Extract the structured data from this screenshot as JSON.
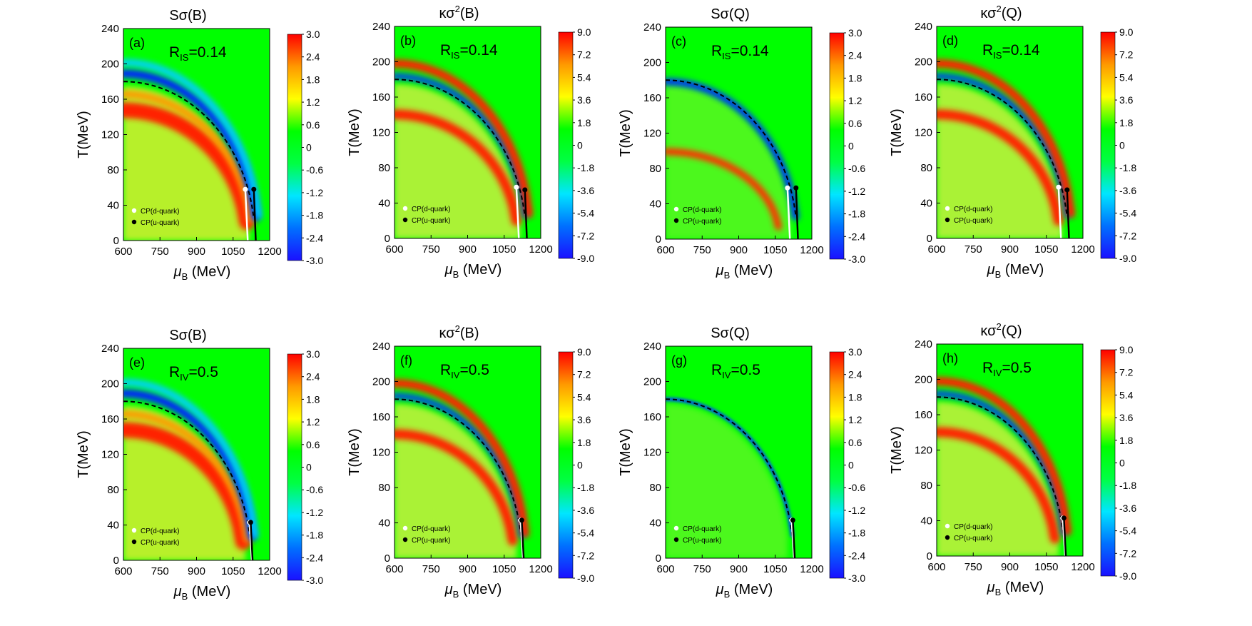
{
  "figure": {
    "colormap_stops": [
      "#1a10ff",
      "#0070ff",
      "#00e6ff",
      "#00ff44",
      "#00ff00",
      "#ffff00",
      "#ff9900",
      "#ff0000"
    ],
    "plot_bg_color": "#00ff00",
    "cp_d_color": "#ffffff",
    "cp_u_color": "#000000"
  },
  "chart_data": [
    {
      "id": "a",
      "type": "heatmap",
      "panel_label": "(a)",
      "title": "Sσ(B)",
      "annotation": "R_IS=0.14",
      "annotation_main": "R",
      "annotation_sub": "IS",
      "annotation_value": "=0.14",
      "xlabel": "μ_B (MeV)",
      "ylabel": "T(MeV)",
      "xlim": [
        600,
        1200
      ],
      "ylim": [
        0,
        240
      ],
      "xticks": [
        "600",
        "750",
        "900",
        "1050",
        "1200"
      ],
      "yticks": [
        "0",
        "40",
        "80",
        "120",
        "160",
        "200",
        "240"
      ],
      "colorbar_range": [
        -3.0,
        3.0
      ],
      "colorbar_ticks": [
        "3.0",
        "2.4",
        "1.8",
        "1.2",
        "0.6",
        "0",
        "-0.6",
        "-1.2",
        "-1.8",
        "-2.4",
        "-3.0"
      ],
      "legend": [
        "CP(d-quark)",
        "CP(u-quark)"
      ],
      "crossover_T0": 180,
      "cp_d": [
        1100,
        58
      ],
      "cp_u": [
        1135,
        58
      ]
    },
    {
      "id": "b",
      "type": "heatmap",
      "panel_label": "(b)",
      "title": "κσ2(B)",
      "title_main": "κσ",
      "title_sup": "2",
      "title_tail": "(B)",
      "annotation": "R_IS=0.14",
      "annotation_main": "R",
      "annotation_sub": "IS",
      "annotation_value": "=0.14",
      "xlabel": "μ_B (MeV)",
      "ylabel": "T(MeV)",
      "xlim": [
        600,
        1200
      ],
      "ylim": [
        0,
        240
      ],
      "xticks": [
        "600",
        "750",
        "900",
        "1050",
        "1200"
      ],
      "yticks": [
        "0",
        "40",
        "80",
        "120",
        "160",
        "200",
        "240"
      ],
      "colorbar_range": [
        -9.0,
        9.0
      ],
      "colorbar_ticks": [
        "9.0",
        "7.2",
        "5.4",
        "3.6",
        "1.8",
        "0",
        "-1.8",
        "-3.6",
        "-5.4",
        "-7.2",
        "-9.0"
      ],
      "legend": [
        "CP(d-quark)",
        "CP(u-quark)"
      ],
      "crossover_T0": 180,
      "cp_d": [
        1100,
        58
      ],
      "cp_u": [
        1135,
        55
      ]
    },
    {
      "id": "c",
      "type": "heatmap",
      "panel_label": "(c)",
      "title": "Sσ(Q)",
      "annotation": "R_IS=0.14",
      "annotation_main": "R",
      "annotation_sub": "IS",
      "annotation_value": "=0.14",
      "xlabel": "μ_B (MeV)",
      "ylabel": "T(MeV)",
      "xlim": [
        600,
        1200
      ],
      "ylim": [
        0,
        240
      ],
      "xticks": [
        "600",
        "750",
        "900",
        "1050",
        "1200"
      ],
      "yticks": [
        "0",
        "40",
        "80",
        "120",
        "160",
        "200",
        "240"
      ],
      "colorbar_range": [
        -3.0,
        3.0
      ],
      "colorbar_ticks": [
        "3.0",
        "2.4",
        "1.8",
        "1.2",
        "0.6",
        "0",
        "-0.6",
        "-1.2",
        "-1.8",
        "-2.4",
        "-3.0"
      ],
      "legend": [
        "CP(d-quark)",
        "CP(u-quark)"
      ],
      "crossover_T0": 180,
      "cp_d": [
        1100,
        58
      ],
      "cp_u": [
        1135,
        58
      ]
    },
    {
      "id": "d",
      "type": "heatmap",
      "panel_label": "(d)",
      "title": "κσ2(Q)",
      "title_main": "κσ",
      "title_sup": "2",
      "title_tail": "(Q)",
      "annotation": "R_IS=0.14",
      "annotation_main": "R",
      "annotation_sub": "IS",
      "annotation_value": "=0.14",
      "xlabel": "μ_B (MeV)",
      "ylabel": "T(MeV)",
      "xlim": [
        600,
        1200
      ],
      "ylim": [
        0,
        240
      ],
      "xticks": [
        "600",
        "750",
        "900",
        "1050",
        "1200"
      ],
      "yticks": [
        "0",
        "40",
        "80",
        "120",
        "160",
        "200",
        "240"
      ],
      "colorbar_range": [
        -9.0,
        9.0
      ],
      "colorbar_ticks": [
        "9.0",
        "7.2",
        "5.4",
        "3.6",
        "1.8",
        "0",
        "-1.8",
        "-3.6",
        "-5.4",
        "-7.2",
        "-9.0"
      ],
      "legend": [
        "CP(d-quark)",
        "CP(u-quark)"
      ],
      "crossover_T0": 180,
      "cp_d": [
        1100,
        58
      ],
      "cp_u": [
        1135,
        55
      ]
    },
    {
      "id": "e",
      "type": "heatmap",
      "panel_label": "(e)",
      "title": "Sσ(B)",
      "annotation": "R_IV=0.5",
      "annotation_main": "R",
      "annotation_sub": "IV",
      "annotation_value": "=0.5",
      "xlabel": "μ_B (MeV)",
      "ylabel": "T(MeV)",
      "xlim": [
        600,
        1200
      ],
      "ylim": [
        0,
        240
      ],
      "xticks": [
        "600",
        "750",
        "900",
        "1050",
        "1200"
      ],
      "yticks": [
        "0",
        "40",
        "80",
        "120",
        "160",
        "200",
        "240"
      ],
      "colorbar_range": [
        -3.0,
        3.0
      ],
      "colorbar_ticks": [
        "3.0",
        "2.4",
        "1.8",
        "1.2",
        "0.6",
        "0",
        "-0.6",
        "-1.2",
        "-1.8",
        "-2.4",
        "-3.0"
      ],
      "legend": [
        "CP(d-quark)",
        "CP(u-quark)"
      ],
      "crossover_T0": 180,
      "cp_d": [
        1117,
        43
      ],
      "cp_u": [
        1122,
        43
      ]
    },
    {
      "id": "f",
      "type": "heatmap",
      "panel_label": "(f)",
      "title": "κσ2(B)",
      "title_main": "κσ",
      "title_sup": "2",
      "title_tail": "(B)",
      "annotation": "R_IV=0.5",
      "annotation_main": "R",
      "annotation_sub": "IV",
      "annotation_value": "=0.5",
      "xlabel": "μ_B (MeV)",
      "ylabel": "T(MeV)",
      "xlim": [
        600,
        1200
      ],
      "ylim": [
        0,
        240
      ],
      "xticks": [
        "600",
        "750",
        "900",
        "1050",
        "1200"
      ],
      "yticks": [
        "0",
        "40",
        "80",
        "120",
        "160",
        "200",
        "240"
      ],
      "colorbar_range": [
        -9.0,
        9.0
      ],
      "colorbar_ticks": [
        "9.0",
        "7.2",
        "5.4",
        "3.6",
        "1.8",
        "0",
        "-1.8",
        "-3.6",
        "-5.4",
        "-7.2",
        "-9.0"
      ],
      "legend": [
        "CP(d-quark)",
        "CP(u-quark)"
      ],
      "crossover_T0": 180,
      "cp_d": [
        1117,
        43
      ],
      "cp_u": [
        1122,
        43
      ]
    },
    {
      "id": "g",
      "type": "heatmap",
      "panel_label": "(g)",
      "title": "Sσ(Q)",
      "annotation": "R_IV=0.5",
      "annotation_main": "R",
      "annotation_sub": "IV",
      "annotation_value": "=0.5",
      "xlabel": "μ_B (MeV)",
      "ylabel": "T(MeV)",
      "xlim": [
        600,
        1200
      ],
      "ylim": [
        0,
        240
      ],
      "xticks": [
        "600",
        "750",
        "900",
        "1050",
        "1200"
      ],
      "yticks": [
        "0",
        "40",
        "80",
        "120",
        "160",
        "200",
        "240"
      ],
      "colorbar_range": [
        -3.0,
        3.0
      ],
      "colorbar_ticks": [
        "3.0",
        "2.4",
        "1.8",
        "1.2",
        "0.6",
        "0",
        "-0.6",
        "-1.2",
        "-1.8",
        "-2.4",
        "-3.0"
      ],
      "legend": [
        "CP(d-quark)",
        "CP(u-quark)"
      ],
      "crossover_T0": 180,
      "cp_d": [
        1117,
        43
      ],
      "cp_u": [
        1122,
        43
      ]
    },
    {
      "id": "h",
      "type": "heatmap",
      "panel_label": "(h)",
      "title": "κσ2(Q)",
      "title_main": "κσ",
      "title_sup": "2",
      "title_tail": "(Q)",
      "annotation": "R_IV=0.5",
      "annotation_main": "R",
      "annotation_sub": "IV",
      "annotation_value": "=0.5",
      "xlabel": "μ_B (MeV)",
      "ylabel": "T(MeV)",
      "xlim": [
        600,
        1200
      ],
      "ylim": [
        0,
        240
      ],
      "xticks": [
        "600",
        "750",
        "900",
        "1050",
        "1200"
      ],
      "yticks": [
        "0",
        "40",
        "80",
        "120",
        "160",
        "200",
        "240"
      ],
      "colorbar_range": [
        -9.0,
        9.0
      ],
      "colorbar_ticks": [
        "9.0",
        "7.2",
        "5.4",
        "3.6",
        "1.8",
        "0",
        "-1.8",
        "-3.6",
        "-5.4",
        "-7.2",
        "-9.0"
      ],
      "legend": [
        "CP(d-quark)",
        "CP(u-quark)"
      ],
      "crossover_T0": 180,
      "cp_d": [
        1117,
        43
      ],
      "cp_u": [
        1122,
        43
      ]
    }
  ]
}
